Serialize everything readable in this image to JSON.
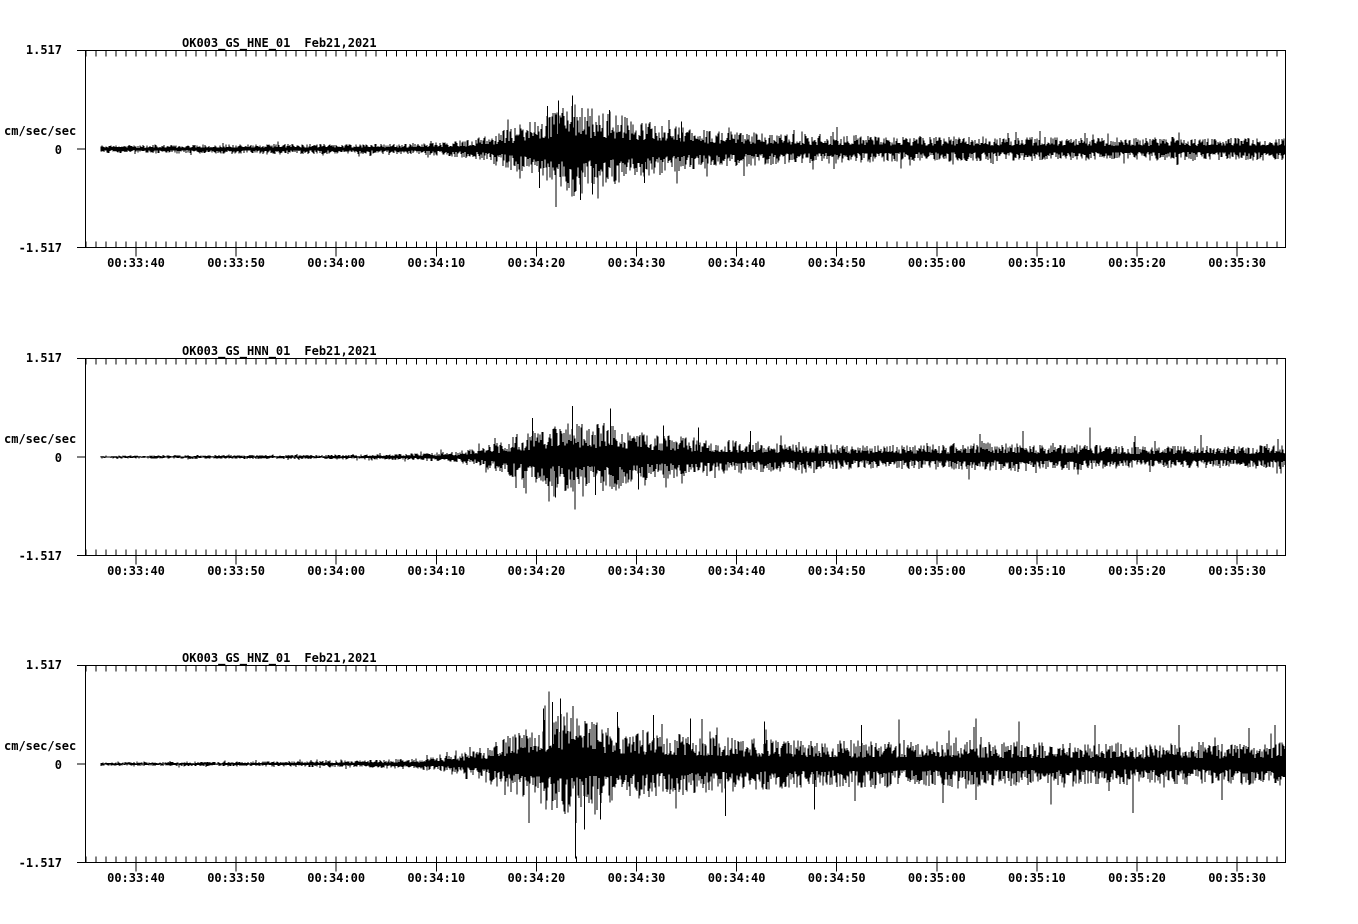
{
  "colors": {
    "background": "#ffffff",
    "ink": "#000000"
  },
  "y_axis": {
    "top": "1.517",
    "zero": "0",
    "bottom": "-1.517",
    "unit": "cm/sec/sec"
  },
  "panels": [
    {
      "station": "OK003_GS_HNE_01",
      "date": "Feb21,2021"
    },
    {
      "station": "OK003_GS_HNN_01",
      "date": "Feb21,2021"
    },
    {
      "station": "OK003_GS_HNZ_01",
      "date": "Feb21,2021"
    }
  ],
  "chart_data": {
    "type": "line",
    "subtype": "seismogram-helicorder",
    "ylabel": "cm/sec/sec",
    "ylim": [
      -1.517,
      1.517
    ],
    "y_tick_labels": [
      "1.517",
      "0",
      "-1.517"
    ],
    "x_axis": {
      "tick_labels": [
        "00:33:40",
        "00:33:50",
        "00:34:00",
        "00:34:10",
        "00:34:20",
        "00:34:30",
        "00:34:40",
        "00:34:50",
        "00:35:00",
        "00:35:10",
        "00:35:20",
        "00:35:30"
      ],
      "major_interval_s": 10,
      "minor_interval_s": 1,
      "window_start": "00:33:35",
      "window_end": "00:35:35"
    },
    "event": {
      "onset": "00:34:10",
      "peak": "00:34:23"
    },
    "panels": [
      {
        "name": "OK003_GS_HNE_01",
        "date": "Feb21,2021",
        "seed": 11,
        "envelope": [
          [
            1.5,
            0.055
          ],
          [
            6,
            0.06
          ],
          [
            12,
            0.065
          ],
          [
            18,
            0.075
          ],
          [
            24,
            0.07
          ],
          [
            30,
            0.07
          ],
          [
            33,
            0.08
          ],
          [
            36,
            0.1
          ],
          [
            38,
            0.13
          ],
          [
            40,
            0.18
          ],
          [
            42,
            0.28
          ],
          [
            44,
            0.38
          ],
          [
            46,
            0.5
          ],
          [
            47.5,
            0.6
          ],
          [
            48.7,
            0.68
          ],
          [
            50,
            0.58
          ],
          [
            52,
            0.52
          ],
          [
            54,
            0.45
          ],
          [
            56,
            0.4
          ],
          [
            58,
            0.34
          ],
          [
            61,
            0.29
          ],
          [
            64,
            0.26
          ],
          [
            68,
            0.23
          ],
          [
            72,
            0.21
          ],
          [
            76,
            0.2
          ],
          [
            80,
            0.18
          ],
          [
            84,
            0.17
          ],
          [
            88,
            0.18
          ],
          [
            92,
            0.16
          ],
          [
            96,
            0.17
          ],
          [
            100,
            0.16
          ],
          [
            104,
            0.15
          ],
          [
            108,
            0.17
          ],
          [
            112,
            0.15
          ],
          [
            116,
            0.16
          ],
          [
            119.8,
            0.17
          ]
        ],
        "spikes": [
          [
            45.3,
            -0.6
          ],
          [
            46.1,
            0.66
          ],
          [
            47.2,
            0.74
          ],
          [
            48.6,
            0.82
          ],
          [
            49.4,
            -0.78
          ],
          [
            50.6,
            -0.7
          ],
          [
            52.3,
            0.6
          ],
          [
            55.8,
            -0.52
          ],
          [
            59.5,
            0.42
          ]
        ]
      },
      {
        "name": "OK003_GS_HNN_01",
        "date": "Feb21,2021",
        "seed": 22,
        "envelope": [
          [
            1.5,
            0.022
          ],
          [
            8,
            0.025
          ],
          [
            16,
            0.028
          ],
          [
            24,
            0.032
          ],
          [
            30,
            0.04
          ],
          [
            34,
            0.055
          ],
          [
            37,
            0.08
          ],
          [
            39,
            0.12
          ],
          [
            41,
            0.2
          ],
          [
            43,
            0.3
          ],
          [
            45,
            0.38
          ],
          [
            47,
            0.44
          ],
          [
            48.5,
            0.52
          ],
          [
            50,
            0.44
          ],
          [
            52,
            0.48
          ],
          [
            54,
            0.4
          ],
          [
            56,
            0.35
          ],
          [
            58,
            0.31
          ],
          [
            61,
            0.27
          ],
          [
            64,
            0.24
          ],
          [
            67,
            0.22
          ],
          [
            70,
            0.2
          ],
          [
            74,
            0.18
          ],
          [
            78,
            0.165
          ],
          [
            82,
            0.17
          ],
          [
            86,
            0.18
          ],
          [
            89,
            0.21
          ],
          [
            91,
            0.18
          ],
          [
            93,
            0.21
          ],
          [
            96,
            0.17
          ],
          [
            99,
            0.19
          ],
          [
            102,
            0.16
          ],
          [
            106,
            0.15
          ],
          [
            110,
            0.16
          ],
          [
            114,
            0.15
          ],
          [
            119.8,
            0.17
          ]
        ],
        "spikes": [
          [
            44.6,
            0.6
          ],
          [
            46.9,
            -0.62
          ],
          [
            48.6,
            0.78
          ],
          [
            50.9,
            -0.58
          ],
          [
            52.4,
            0.74
          ],
          [
            55.2,
            -0.5
          ],
          [
            57.7,
            0.48
          ],
          [
            61.2,
            0.45
          ],
          [
            66.4,
            0.4
          ],
          [
            89.3,
            0.35
          ],
          [
            93.6,
            0.4
          ],
          [
            100.3,
            0.45
          ],
          [
            104.8,
            0.32
          ],
          [
            111.4,
            0.34
          ]
        ]
      },
      {
        "name": "OK003_GS_HNZ_01",
        "date": "Feb21,2021",
        "seed": 33,
        "envelope": [
          [
            1.5,
            0.025
          ],
          [
            8,
            0.03
          ],
          [
            16,
            0.035
          ],
          [
            24,
            0.045
          ],
          [
            30,
            0.06
          ],
          [
            34,
            0.09
          ],
          [
            37,
            0.13
          ],
          [
            39,
            0.2
          ],
          [
            41,
            0.32
          ],
          [
            43,
            0.46
          ],
          [
            45,
            0.58
          ],
          [
            46.5,
            0.68
          ],
          [
            48,
            0.74
          ],
          [
            49.5,
            0.64
          ],
          [
            51,
            0.58
          ],
          [
            53,
            0.53
          ],
          [
            55,
            0.5
          ],
          [
            58,
            0.45
          ],
          [
            61,
            0.42
          ],
          [
            64,
            0.4
          ],
          [
            67,
            0.37
          ],
          [
            70,
            0.34
          ],
          [
            73,
            0.32
          ],
          [
            76,
            0.33
          ],
          [
            79,
            0.35
          ],
          [
            82,
            0.31
          ],
          [
            85,
            0.32
          ],
          [
            88,
            0.35
          ],
          [
            91,
            0.3
          ],
          [
            94,
            0.32
          ],
          [
            97,
            0.3
          ],
          [
            100,
            0.28
          ],
          [
            103,
            0.3
          ],
          [
            106,
            0.27
          ],
          [
            109,
            0.29
          ],
          [
            112,
            0.27
          ],
          [
            115,
            0.29
          ],
          [
            119.8,
            0.31
          ]
        ],
        "spikes": [
          [
            45.7,
            0.85
          ],
          [
            46.6,
            0.95
          ],
          [
            47.4,
            1.0
          ],
          [
            48.9,
            -1.45
          ],
          [
            49.8,
            -1.0
          ],
          [
            51.4,
            -0.85
          ],
          [
            53.1,
            0.8
          ],
          [
            56.7,
            0.75
          ],
          [
            60.4,
            0.7
          ],
          [
            63.9,
            -0.8
          ],
          [
            67.8,
            0.65
          ],
          [
            72.8,
            -0.7
          ],
          [
            77.5,
            0.6
          ],
          [
            81.2,
            0.68
          ],
          [
            85.6,
            -0.6
          ],
          [
            88.9,
            0.7
          ],
          [
            93.2,
            0.65
          ],
          [
            96.4,
            -0.62
          ],
          [
            100.8,
            0.6
          ],
          [
            104.6,
            -0.75
          ],
          [
            109.2,
            0.6
          ],
          [
            113.5,
            -0.55
          ],
          [
            116.2,
            0.55
          ],
          [
            118.8,
            0.6
          ]
        ]
      }
    ]
  }
}
